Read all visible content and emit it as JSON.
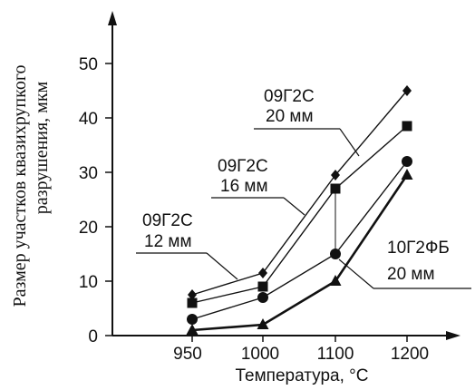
{
  "chart_data": {
    "type": "line",
    "x": [
      950,
      1000,
      1100,
      1200
    ],
    "xlabel": "Температура, °С",
    "ylabel_line1": "Размер участков квазихрупкого",
    "ylabel_line2": "разрушения, мкм",
    "ylim": [
      0,
      55
    ],
    "xticks": [
      "950",
      "1000",
      "1100",
      "1200"
    ],
    "yticks": [
      "0",
      "10",
      "20",
      "30",
      "40",
      "50"
    ],
    "grid": false,
    "series": [
      {
        "name": "09Г2С 20 мм",
        "marker": "diamond",
        "values": [
          7.5,
          11.5,
          29.5,
          45
        ]
      },
      {
        "name": "09Г2С 16 мм",
        "marker": "square",
        "values": [
          6,
          9,
          27,
          38.5
        ]
      },
      {
        "name": "09Г2С 12 мм",
        "marker": "circle",
        "values": [
          3,
          7,
          15,
          32
        ]
      },
      {
        "name": "10Г2ФБ 20 мм",
        "marker": "triangle",
        "values": [
          1,
          2,
          10,
          29.5
        ]
      }
    ],
    "annotations": [
      {
        "line1": "09Г2С",
        "line2": "20 мм"
      },
      {
        "line1": "09Г2С",
        "line2": "16 мм"
      },
      {
        "line1": "09Г2С",
        "line2": "12 мм"
      },
      {
        "line1": "10Г2ФБ",
        "line2": "20 мм"
      }
    ]
  }
}
